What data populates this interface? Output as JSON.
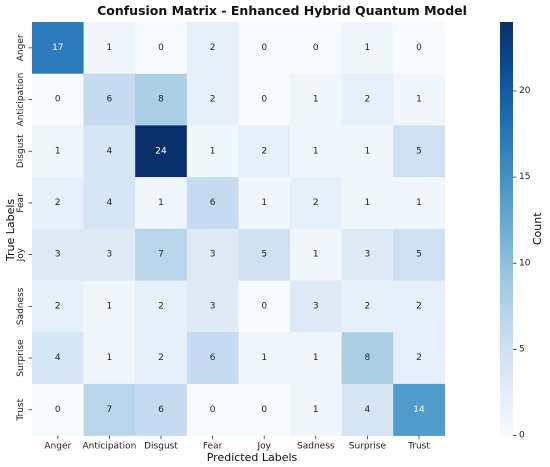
{
  "chart_data": {
    "type": "heatmap",
    "title": "Confusion Matrix - Enhanced Hybrid Quantum Model",
    "xlabel": "Predicted Labels",
    "ylabel": "True Labels",
    "colorbar_label": "Count",
    "x_categories": [
      "Anger",
      "Anticipation",
      "Disgust",
      "Fear",
      "Joy",
      "Sadness",
      "Surprise",
      "Trust"
    ],
    "y_categories": [
      "Anger",
      "Anticipation",
      "Disgust",
      "Fear",
      "Joy",
      "Sadness",
      "Surprise",
      "Trust"
    ],
    "values": [
      [
        17,
        1,
        0,
        2,
        0,
        0,
        1,
        0
      ],
      [
        0,
        6,
        8,
        2,
        0,
        1,
        2,
        1
      ],
      [
        1,
        4,
        24,
        1,
        2,
        1,
        1,
        5
      ],
      [
        2,
        4,
        1,
        6,
        1,
        2,
        1,
        1
      ],
      [
        3,
        3,
        7,
        3,
        5,
        1,
        3,
        5
      ],
      [
        2,
        1,
        2,
        3,
        0,
        3,
        2,
        2
      ],
      [
        4,
        1,
        2,
        6,
        1,
        1,
        8,
        2
      ],
      [
        0,
        7,
        6,
        0,
        0,
        1,
        4,
        14
      ]
    ],
    "value_range": [
      0,
      24
    ],
    "colorbar_ticks": [
      "0",
      "5",
      "10",
      "15",
      "20"
    ],
    "colormap": "Blues",
    "grid": false
  }
}
